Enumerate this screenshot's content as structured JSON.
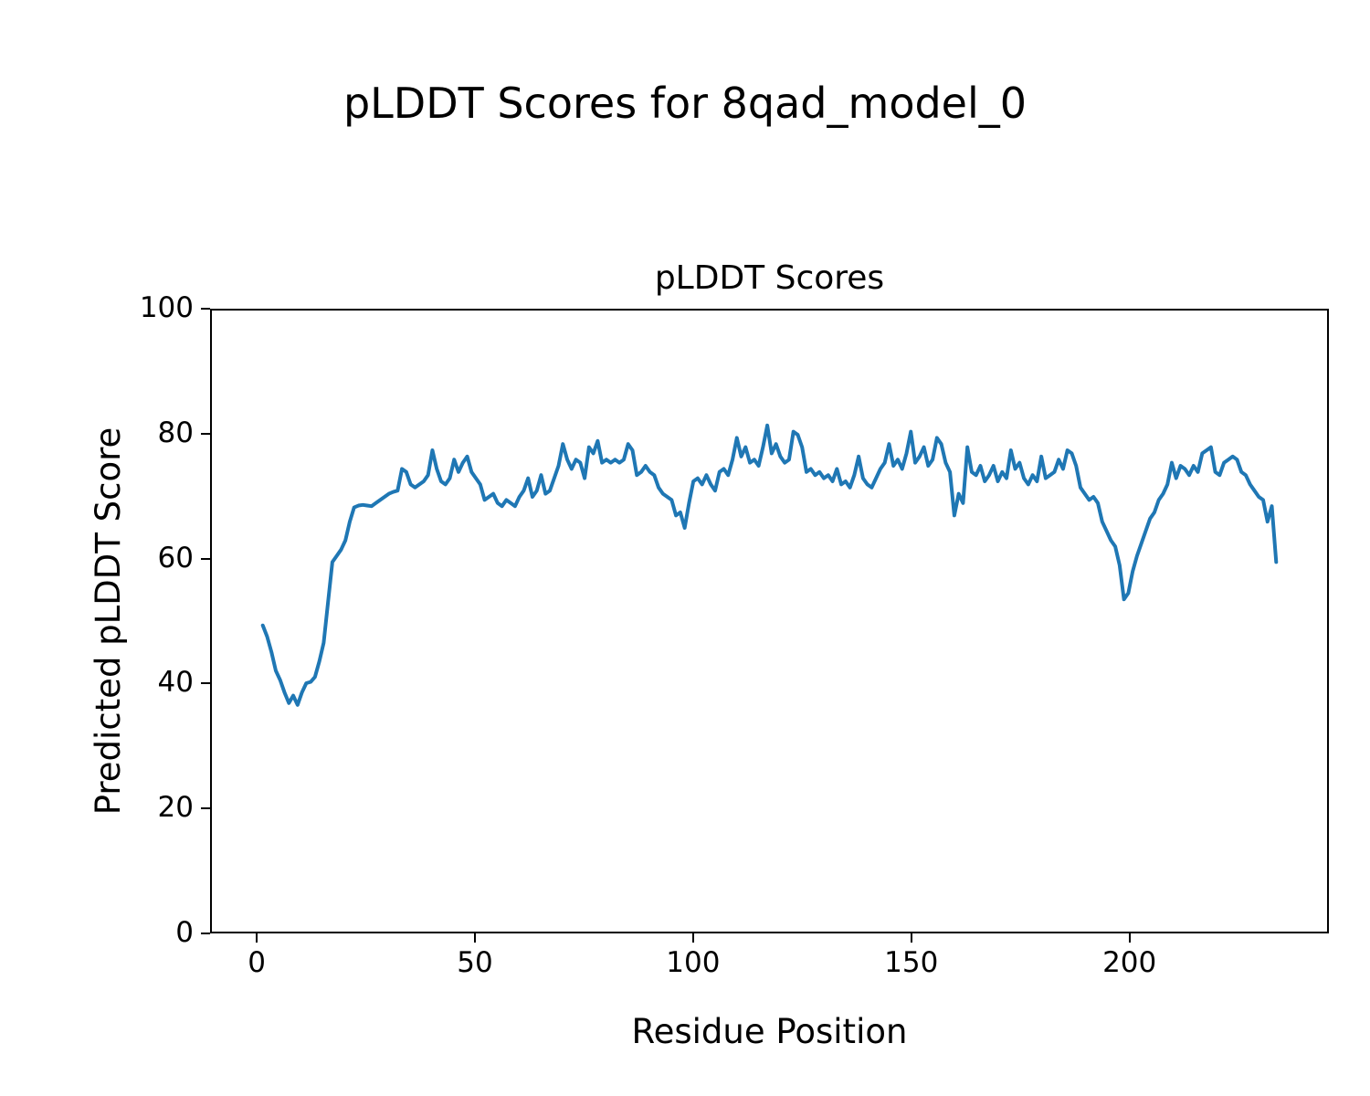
{
  "chart_data": {
    "type": "line",
    "suptitle": "pLDDT Scores for 8qad_model_0",
    "title": "pLDDT Scores",
    "xlabel": "Residue Position",
    "ylabel": "Predicted pLDDT Score",
    "xlim": [
      -10.7,
      245.7
    ],
    "ylim": [
      0,
      100
    ],
    "xticks": [
      0,
      50,
      100,
      150,
      200
    ],
    "yticks": [
      0,
      20,
      40,
      60,
      80,
      100
    ],
    "grid": false,
    "legend": false,
    "background": "#ffffff",
    "spine_color": "#000000",
    "line_color": "#1f77b4",
    "line_width": 4,
    "series": [
      {
        "name": "pLDDT",
        "x_start": 1,
        "x_step": 1,
        "y": [
          49.3,
          47.5,
          45.0,
          42.0,
          40.5,
          38.5,
          36.8,
          38.0,
          36.5,
          38.5,
          40.0,
          40.2,
          41.0,
          43.5,
          46.5,
          53.0,
          59.5,
          60.5,
          61.5,
          63.0,
          66.0,
          68.3,
          68.6,
          68.7,
          68.6,
          68.5,
          69.0,
          69.5,
          70.0,
          70.5,
          70.8,
          71.0,
          74.5,
          74.0,
          72.0,
          71.5,
          72.0,
          72.5,
          73.5,
          77.5,
          74.5,
          72.5,
          72.0,
          73.0,
          76.0,
          74.0,
          75.5,
          76.5,
          74.0,
          73.0,
          72.0,
          69.5,
          70.0,
          70.5,
          69.0,
          68.5,
          69.5,
          69.0,
          68.5,
          70.0,
          71.0,
          73.0,
          70.0,
          71.0,
          73.5,
          70.5,
          71.0,
          73.0,
          75.0,
          78.5,
          76.0,
          74.5,
          76.0,
          75.5,
          73.0,
          78.0,
          77.0,
          79.0,
          75.5,
          76.0,
          75.5,
          76.0,
          75.5,
          76.0,
          78.5,
          77.5,
          73.5,
          74.0,
          75.0,
          74.0,
          73.5,
          71.5,
          70.5,
          70.0,
          69.5,
          67.0,
          67.5,
          65.0,
          69.0,
          72.5,
          73.0,
          72.0,
          73.5,
          72.0,
          71.0,
          74.0,
          74.5,
          73.5,
          76.0,
          79.5,
          76.5,
          78.0,
          75.5,
          76.0,
          75.0,
          78.0,
          81.5,
          77.0,
          78.5,
          76.5,
          75.5,
          76.0,
          80.5,
          80.0,
          78.0,
          74.0,
          74.5,
          73.5,
          74.0,
          73.0,
          73.5,
          72.5,
          74.5,
          72.0,
          72.5,
          71.5,
          73.5,
          76.5,
          73.0,
          72.0,
          71.5,
          73.0,
          74.5,
          75.5,
          78.5,
          75.0,
          76.0,
          74.5,
          77.0,
          80.5,
          75.5,
          76.5,
          78.0,
          75.0,
          76.0,
          79.5,
          78.5,
          75.5,
          74.0,
          67.0,
          70.5,
          69.0,
          78.0,
          74.0,
          73.5,
          75.0,
          72.5,
          73.5,
          75.0,
          72.5,
          74.0,
          73.0,
          77.5,
          74.5,
          75.5,
          73.0,
          72.0,
          73.5,
          72.5,
          76.5,
          73.0,
          73.5,
          74.0,
          76.0,
          74.5,
          77.5,
          77.0,
          75.0,
          71.5,
          70.5,
          69.5,
          70.0,
          69.0,
          66.0,
          64.5,
          63.0,
          62.0,
          59.0,
          53.5,
          54.5,
          58.0,
          60.5,
          62.5,
          64.5,
          66.5,
          67.5,
          69.5,
          70.5,
          72.0,
          75.5,
          73.0,
          75.0,
          74.5,
          73.5,
          75.0,
          74.0,
          77.0,
          77.5,
          78.0,
          74.0,
          73.5,
          75.5,
          76.0,
          76.5,
          76.0,
          74.0,
          73.5,
          72.0,
          71.0,
          70.0,
          69.5,
          66.0,
          68.5,
          59.5
        ]
      }
    ]
  }
}
